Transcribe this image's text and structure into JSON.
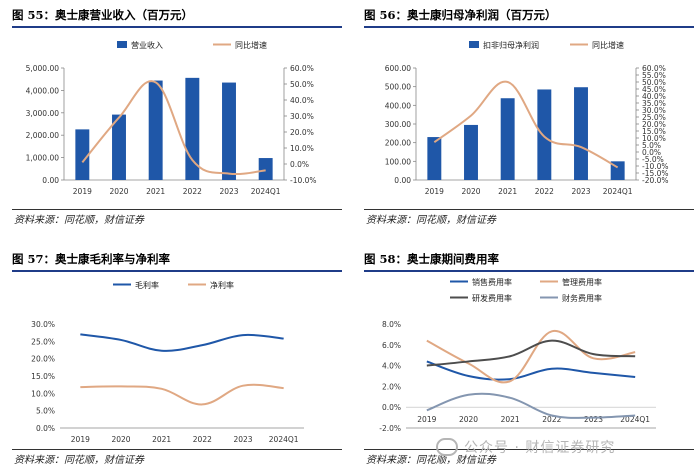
{
  "source_text": "资料来源：同花顺，财信证券",
  "watermark": "公众号 · 财信证券研究",
  "colors": {
    "blue": "#1f57a8",
    "orange": "#e0a883",
    "dark": "#4d4d4d",
    "gray": "#8496b0",
    "rule": "#1f3c88"
  },
  "chart_data": [
    {
      "id": "c55",
      "type": "bar",
      "title": "图 55：奥士康营业收入（百万元）",
      "categories": [
        "2019",
        "2020",
        "2021",
        "2022",
        "2023",
        "2024Q1"
      ],
      "ylim": [
        0,
        5000
      ],
      "yticks": [
        "0.00",
        "1,000.00",
        "2,000.00",
        "3,000.00",
        "4,000.00",
        "5,000.00"
      ],
      "y2lim": [
        -10,
        60
      ],
      "y2ticks": [
        "-10.0%",
        "0.0%",
        "10.0%",
        "20.0%",
        "30.0%",
        "40.0%",
        "50.0%",
        "60.0%"
      ],
      "series": [
        {
          "name": "营业收入",
          "kind": "bar",
          "axis": "left",
          "color": "#1f57a8",
          "values": [
            2260,
            2920,
            4440,
            4560,
            4350,
            980
          ]
        },
        {
          "name": "同比增速",
          "kind": "line",
          "axis": "right",
          "color": "#e0a883",
          "values": [
            1.0,
            29.0,
            51.0,
            2.5,
            -6.0,
            -4.0
          ]
        }
      ]
    },
    {
      "id": "c56",
      "type": "bar",
      "title": "图 56：奥士康归母净利润（百万元）",
      "categories": [
        "2019",
        "2020",
        "2021",
        "2022",
        "2023",
        "2024Q1"
      ],
      "ylim": [
        0,
        600
      ],
      "yticks": [
        "0.00",
        "100.00",
        "200.00",
        "300.00",
        "400.00",
        "500.00",
        "600.00"
      ],
      "y2lim": [
        -20,
        60
      ],
      "y2ticks": [
        "-20.0%",
        "-15.0%",
        "-10.0%",
        "-5.0%",
        "0.0%",
        "5.0%",
        "10.0%",
        "15.0%",
        "20.0%",
        "25.0%",
        "30.0%",
        "35.0%",
        "40.0%",
        "45.0%",
        "50.0%",
        "55.0%",
        "60.0%"
      ],
      "series": [
        {
          "name": "扣非归母净利润",
          "kind": "bar",
          "axis": "left",
          "color": "#1f57a8",
          "values": [
            230,
            295,
            438,
            485,
            497,
            100
          ]
        },
        {
          "name": "同比增速",
          "kind": "line",
          "axis": "right",
          "color": "#e0a883",
          "values": [
            7.0,
            26.0,
            50.0,
            11.0,
            3.5,
            -11.0
          ]
        }
      ]
    },
    {
      "id": "c57",
      "type": "line",
      "title": "图 57：奥士康毛利率与净利率",
      "categories": [
        "2019",
        "2020",
        "2021",
        "2022",
        "2023",
        "2024Q1"
      ],
      "ylim": [
        0,
        30
      ],
      "yticks": [
        "0.0%",
        "5.0%",
        "10.0%",
        "15.0%",
        "20.0%",
        "25.0%",
        "30.0%"
      ],
      "series": [
        {
          "name": "毛利率",
          "color": "#1f57a8",
          "values": [
            27.0,
            25.4,
            22.3,
            23.9,
            26.8,
            25.8
          ]
        },
        {
          "name": "净利率",
          "color": "#e0a883",
          "values": [
            11.8,
            12.0,
            11.3,
            6.8,
            12.2,
            11.5
          ]
        }
      ]
    },
    {
      "id": "c58",
      "type": "line",
      "title": "图 58：奥士康期间费用率",
      "categories": [
        "2019",
        "2020",
        "2021",
        "2022",
        "2023",
        "2024Q1"
      ],
      "ylim": [
        -2,
        8
      ],
      "yticks": [
        "-2.0%",
        "0.0%",
        "2.0%",
        "4.0%",
        "6.0%",
        "8.0%"
      ],
      "series": [
        {
          "name": "销售费用率",
          "color": "#1f57a8",
          "values": [
            4.4,
            3.0,
            2.7,
            3.7,
            3.3,
            2.9
          ]
        },
        {
          "name": "管理费用率",
          "color": "#e0a883",
          "values": [
            6.4,
            4.2,
            2.5,
            7.3,
            4.7,
            5.3
          ]
        },
        {
          "name": "研发费用率",
          "color": "#4d4d4d",
          "values": [
            4.0,
            4.4,
            4.9,
            6.4,
            5.1,
            4.9
          ]
        },
        {
          "name": "财务费用率",
          "color": "#8496b0",
          "values": [
            -0.3,
            1.2,
            0.9,
            -0.8,
            -1.0,
            -0.8
          ]
        }
      ]
    }
  ]
}
